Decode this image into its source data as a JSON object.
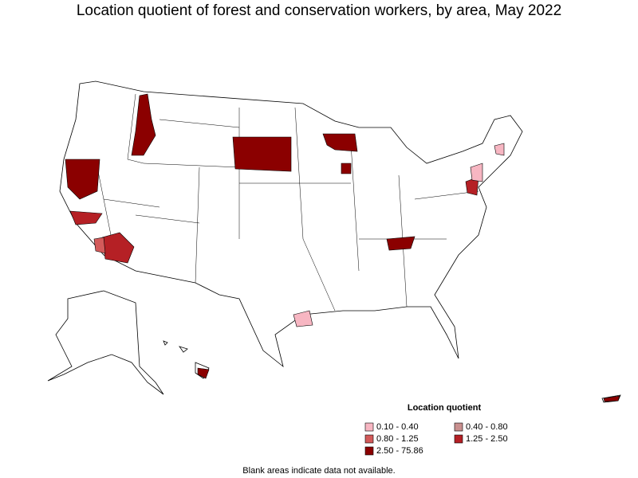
{
  "title": "Location quotient of forest and conservation workers, by area, May 2022",
  "legend": {
    "title": "Location quotient",
    "items": [
      {
        "label": "0.10 - 0.40",
        "color": "#f7b6c2"
      },
      {
        "label": "0.40 - 0.80",
        "color": "#c9908f"
      },
      {
        "label": "0.80 - 1.25",
        "color": "#d35a5a"
      },
      {
        "label": "1.25 - 2.50",
        "color": "#b52025"
      },
      {
        "label": "2.50 - 75.86",
        "color": "#8b0000"
      }
    ]
  },
  "footnote": "Blank areas indicate data not available."
}
